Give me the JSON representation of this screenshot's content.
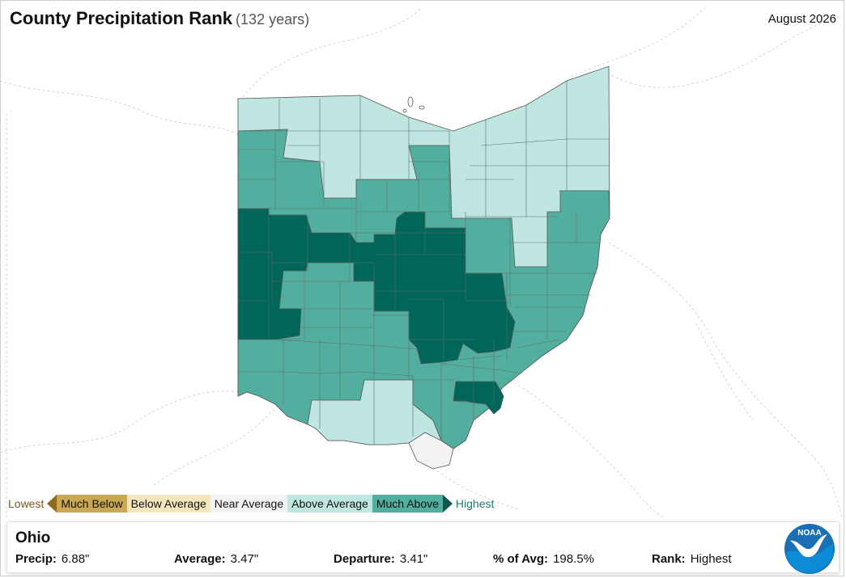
{
  "title": "County Precipitation Rank",
  "subtitle": "(132 years)",
  "period": "August 2026",
  "legend": {
    "low_label": "Lowest",
    "high_label": "Highest",
    "categories": [
      {
        "label": "Much Below",
        "color": "#c9a753"
      },
      {
        "label": "Below Average",
        "color": "#f4e5bd"
      },
      {
        "label": "Near Average",
        "color": "#f3f3f3"
      },
      {
        "label": "Above Average",
        "color": "#bfe6e0"
      },
      {
        "label": "Much Above",
        "color": "#52ae9f"
      }
    ],
    "record_high_color": "#00665a"
  },
  "info": {
    "region": "Ohio",
    "precip_label": "Precip:",
    "precip": "6.88\"",
    "average_label": "Average:",
    "average": "3.47\"",
    "departure_label": "Departure:",
    "departure": "3.41\"",
    "pct_label": "% of Avg:",
    "pct": "198.5%",
    "rank_label": "Rank:",
    "rank": "Highest"
  },
  "logo_text": "NOAA",
  "colors": {
    "above_average": "#bfe6e0",
    "much_above": "#52ae9f",
    "highest": "#00665a",
    "near_average": "#f3f3f3"
  }
}
